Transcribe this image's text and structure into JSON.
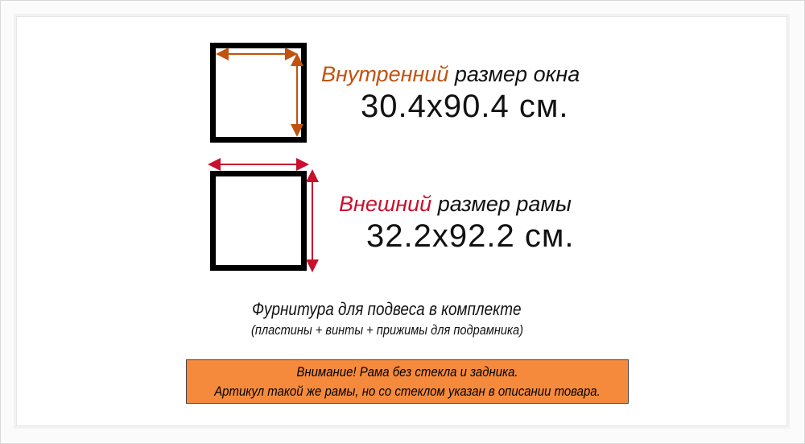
{
  "inner_size": {
    "highlight": "Внутренний",
    "label_rest": " размер окна",
    "value": "30.4x90.4 см."
  },
  "outer_size": {
    "highlight": "Внешний",
    "label_rest": " размер рамы",
    "value": "32.2x92.2 см."
  },
  "hardware": {
    "title": "Фурнитура для подвеса в комплекте",
    "details": "(пластины + винты + прижимы для подрамника)"
  },
  "notice": {
    "line1": "Внимание! Рама без стекла и задника.",
    "line2": "Артикул такой же рамы, но со стеклом указан в описании товара."
  },
  "colors": {
    "inner_accent": "#c0530f",
    "outer_accent": "#c8102e",
    "notice_bg": "#f58a3c"
  }
}
